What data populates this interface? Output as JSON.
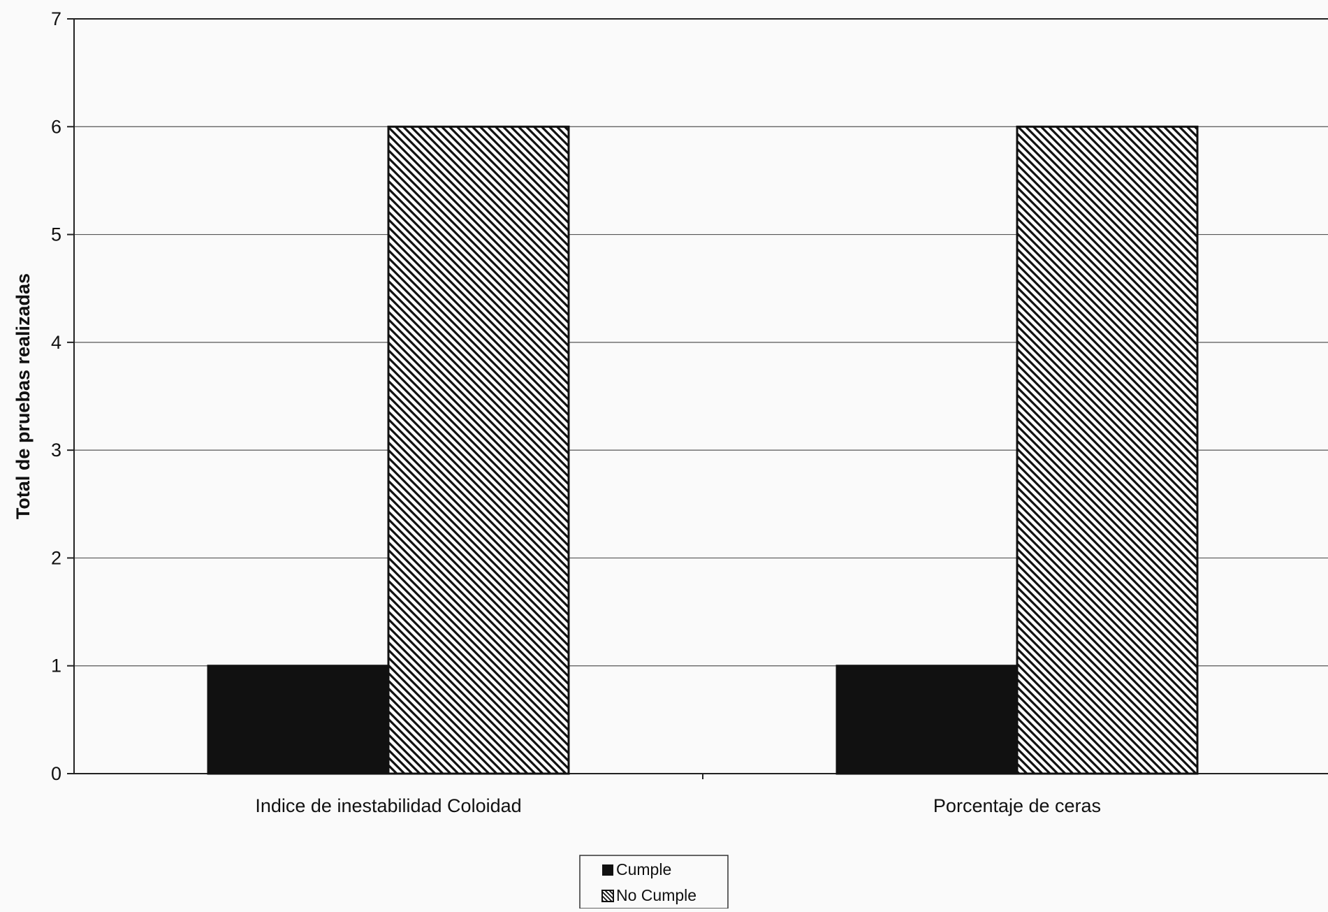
{
  "chart_data": {
    "type": "bar",
    "title": "",
    "xlabel": "",
    "ylabel": "Total de pruebas realizadas",
    "categories": [
      "Indice de inestabilidad Coloidad",
      "Porcentaje de ceras"
    ],
    "series": [
      {
        "name": "Cumple",
        "values": [
          1,
          1
        ],
        "fill": "solid",
        "color": "#111111"
      },
      {
        "name": "No Cumple",
        "values": [
          6,
          6
        ],
        "fill": "diagonal-hatch",
        "color": "#111111"
      }
    ],
    "ylim": [
      0,
      7
    ],
    "yticks": [
      0,
      1,
      2,
      3,
      4,
      5,
      6,
      7
    ],
    "grid": true,
    "legend_position": "bottom-center"
  }
}
